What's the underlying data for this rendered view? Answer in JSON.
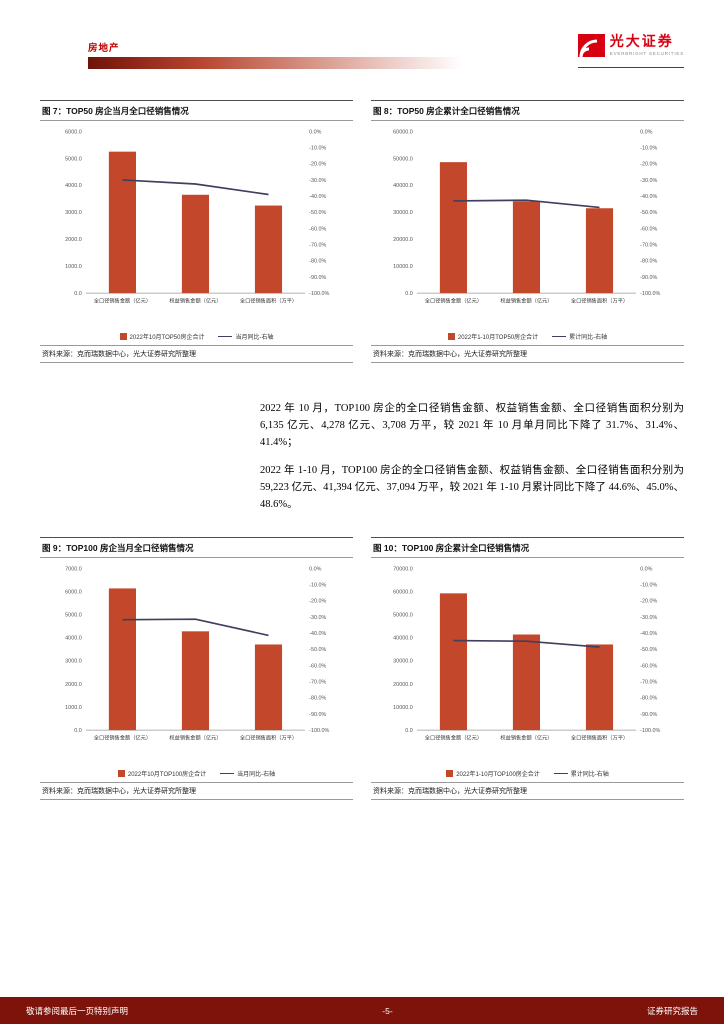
{
  "header": {
    "section_label": "房地产",
    "logo_cn": "光大证券",
    "logo_en": "EVERBRIGHT SECURITIES"
  },
  "body_paragraphs": [
    "2022 年 10 月，TOP100 房企的全口径销售金额、权益销售金额、全口径销售面积分别为 6,135 亿元、4,278 亿元、3,708 万平，较 2021 年 10 月单月同比下降了 31.7%、31.4%、41.4%；",
    "2022 年 1-10 月，TOP100 房企的全口径销售金额、权益销售金额、全口径销售面积分别为 59,223 亿元、41,394 亿元、37,094 万平，较 2021 年 1-10 月累计同比下降了 44.6%、45.0%、48.6%。"
  ],
  "footer": {
    "left": "敬请参阅最后一页特别声明",
    "center": "-5-",
    "right": "证券研究报告"
  },
  "colors": {
    "accent_red": "#C00000",
    "logo_red": "#D60011",
    "bar": "#C3472B",
    "line": "#3F3F5E",
    "footer_bg": "#7D130B",
    "gradient_start": "#70120A"
  },
  "chart_data": [
    {
      "id": "fig7",
      "type": "bar",
      "title": "图 7：TOP50 房企当月全口径销售情况",
      "categories": [
        "全口径销售金额（亿元）",
        "权益销售金额（亿元）",
        "全口径销售面积（万平）"
      ],
      "series": [
        {
          "name": "2022年10月TOP50房企合计",
          "type": "bar",
          "axis": "left",
          "values": [
            5250,
            3650,
            3250
          ]
        },
        {
          "name": "当月同比-右轴",
          "type": "line",
          "axis": "right",
          "values": [
            -30.0,
            -32.5,
            -39.0
          ]
        }
      ],
      "left_axis": {
        "min": 0,
        "max": 6000,
        "step": 1000
      },
      "right_axis": {
        "min": -100,
        "max": 0,
        "step": 10
      },
      "legend_position": "bottom",
      "grid": false,
      "source": "资料来源：克而瑞数据中心，光大证券研究所整理"
    },
    {
      "id": "fig8",
      "type": "bar",
      "title": "图 8：TOP50 房企累计全口径销售情况",
      "categories": [
        "全口径销售金额（亿元）",
        "权益销售金额（亿元）",
        "全口径销售面积（万平）"
      ],
      "series": [
        {
          "name": "2022年1-10月TOP50房企合计",
          "type": "bar",
          "axis": "left",
          "values": [
            48600,
            34100,
            31500
          ]
        },
        {
          "name": "累计同比-右轴",
          "type": "line",
          "axis": "right",
          "values": [
            -43.0,
            -42.5,
            -47.0
          ]
        }
      ],
      "left_axis": {
        "min": 0,
        "max": 60000,
        "step": 10000
      },
      "right_axis": {
        "min": -100,
        "max": 0,
        "step": 10
      },
      "legend_position": "bottom",
      "grid": false,
      "source": "资料来源：克而瑞数据中心，光大证券研究所整理"
    },
    {
      "id": "fig9",
      "type": "bar",
      "title": "图 9：TOP100 房企当月全口径销售情况",
      "categories": [
        "全口径销售金额（亿元）",
        "权益销售金额（亿元）",
        "全口径销售面积（万平）"
      ],
      "series": [
        {
          "name": "2022年10月TOP100房企合计",
          "type": "bar",
          "axis": "left",
          "values": [
            6135,
            4278,
            3708
          ]
        },
        {
          "name": "当月同比-右轴",
          "type": "line",
          "axis": "right",
          "values": [
            -31.7,
            -31.4,
            -41.4
          ]
        }
      ],
      "left_axis": {
        "min": 0,
        "max": 7000,
        "step": 1000
      },
      "right_axis": {
        "min": -100,
        "max": 0,
        "step": 10
      },
      "legend_position": "bottom",
      "grid": false,
      "source": "资料来源：克而瑞数据中心，光大证券研究所整理"
    },
    {
      "id": "fig10",
      "type": "bar",
      "title": "图 10：TOP100 房企累计全口径销售情况",
      "categories": [
        "全口径销售金额（亿元）",
        "权益销售金额（亿元）",
        "全口径销售面积（万平）"
      ],
      "series": [
        {
          "name": "2022年1-10月TOP100房企合计",
          "type": "bar",
          "axis": "left",
          "values": [
            59223,
            41394,
            37094
          ]
        },
        {
          "name": "累计同比-右轴",
          "type": "line",
          "axis": "right",
          "values": [
            -44.6,
            -45.0,
            -48.6
          ]
        }
      ],
      "left_axis": {
        "min": 0,
        "max": 70000,
        "step": 10000
      },
      "right_axis": {
        "min": -100,
        "max": 0,
        "step": 10
      },
      "legend_position": "bottom",
      "grid": false,
      "source": "资料来源：克而瑞数据中心，光大证券研究所整理"
    }
  ]
}
